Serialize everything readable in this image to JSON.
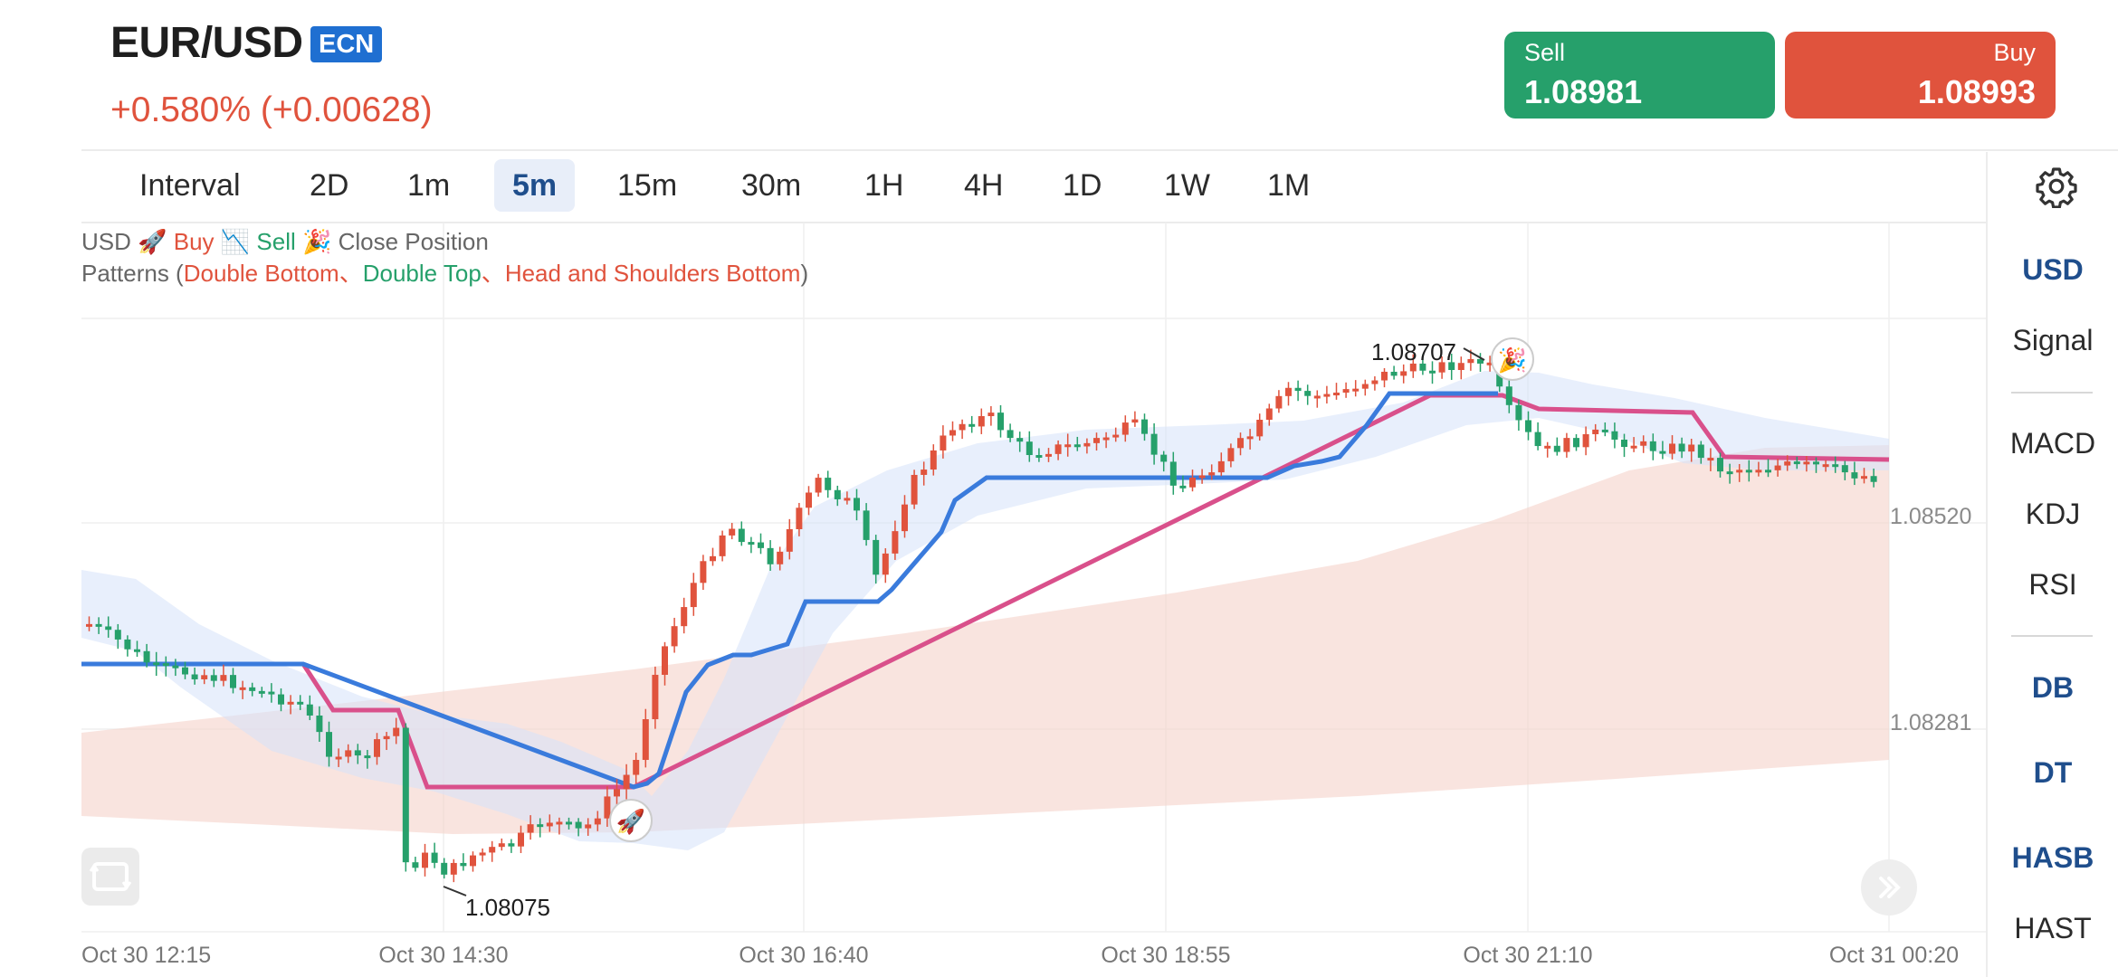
{
  "header": {
    "symbol": "EUR/USD",
    "badge": "ECN",
    "change": "+0.580% (+0.00628)",
    "sell_label": "Sell",
    "sell_price": "1.08981",
    "buy_label": "Buy",
    "buy_price": "1.08993"
  },
  "intervals": [
    "Interval",
    "2D",
    "1m",
    "5m",
    "15m",
    "30m",
    "1H",
    "4H",
    "1D",
    "1W",
    "1M"
  ],
  "active_interval": "5m",
  "legend": {
    "currency": "USD",
    "buy": "Buy",
    "sell": "Sell",
    "close": "Close Position",
    "patterns_prefix": "Patterns (",
    "pattern_db": "Double Bottom",
    "sep": "、",
    "pattern_dt": "Double Top",
    "pattern_hasb": "Head and Shoulders Bottom",
    "patterns_suffix": ")"
  },
  "sidebar": {
    "currency": "USD",
    "signal": "Signal",
    "indicators": [
      "MACD",
      "KDJ",
      "RSI"
    ],
    "patterns": [
      "DB",
      "DT",
      "HASB",
      "HAST"
    ]
  },
  "chart_data": {
    "type": "candlestick",
    "price_labels": [
      "1.08520",
      "1.08281"
    ],
    "x_ticks": [
      "Oct 30 12:15",
      "Oct 30 14:30",
      "Oct 30 16:40",
      "Oct 30 18:55",
      "Oct 30 21:10",
      "Oct 31 00:20"
    ],
    "high_annotation": "1.08707",
    "low_annotation": "1.08075",
    "colors": {
      "up": "#26a06b",
      "down": "#e0533d",
      "signal_line_blue": "#3a7bdc",
      "signal_line_pink": "#d94b8c",
      "cloud_blue": "#dce7fb",
      "cloud_red": "#f7d5ce"
    },
    "price_range_visible": [
      1.0805,
      1.088
    ]
  }
}
